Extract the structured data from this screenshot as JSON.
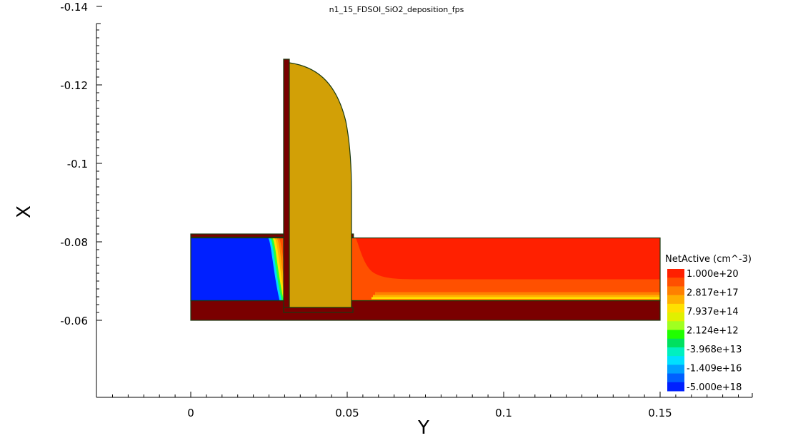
{
  "chart_data": {
    "type": "heatmap",
    "title": "n1_15_FDSOI_SiO2_deposition_fps",
    "xlabel": "Y",
    "ylabel": "X",
    "xlim": [
      -0.03,
      0.18
    ],
    "ylim": [
      -0.06,
      -0.155
    ],
    "x_ticks": [
      {
        "value": 0,
        "label": "0"
      },
      {
        "value": 0.05,
        "label": "0.05"
      },
      {
        "value": 0.1,
        "label": "0.1"
      },
      {
        "value": 0.15,
        "label": "0.15"
      }
    ],
    "y_ticks": [
      {
        "value": -0.14,
        "label": "-0.14"
      },
      {
        "value": -0.12,
        "label": "-0.12"
      },
      {
        "value": -0.1,
        "label": "-0.1"
      },
      {
        "value": -0.08,
        "label": "-0.08"
      },
      {
        "value": -0.06,
        "label": "-0.06"
      }
    ],
    "legend": {
      "title": "NetActive (cm^-3)",
      "placement": "right",
      "labels": [
        "1.000e+20",
        "2.817e+17",
        "7.937e+14",
        "2.124e+12",
        "-3.968e+13",
        "-1.409e+16",
        "-5.000e+18"
      ],
      "colors": [
        "#ff2000",
        "#ff5000",
        "#ff8000",
        "#ffb000",
        "#ffe000",
        "#e0f000",
        "#a0ff20",
        "#20ff00",
        "#00e060",
        "#00f0c0",
        "#00e0ff",
        "#00a0ff",
        "#0060ff",
        "#0020ff"
      ]
    },
    "regions": [
      {
        "name": "buried-oxide",
        "color": "#7a0000",
        "y": [
          0,
          0.15
        ],
        "x": [
          -0.065,
          -0.06
        ]
      },
      {
        "name": "silicon-source",
        "color": "#ff2000",
        "y": [
          0,
          0.15
        ],
        "x": [
          -0.081,
          -0.065
        ]
      },
      {
        "name": "gate-oxide",
        "color": "#7a0000",
        "y": [
          0,
          0.052
        ],
        "x": [
          -0.082,
          -0.0812
        ]
      },
      {
        "name": "liner",
        "color": "#7a0000",
        "y": [
          0.03,
          0.052
        ],
        "x": [
          -0.146,
          -0.081
        ]
      },
      {
        "name": "spacer",
        "color": "#d2a006",
        "y": [
          0.0317,
          0.0512
        ],
        "x": [
          -0.145,
          -0.0825
        ]
      }
    ],
    "colors": {
      "oxide": "#7a0000",
      "spacer": "#d2a006",
      "n_plus": "#ff2000",
      "p_region": "#0020ff",
      "outline": "#1b3a10"
    }
  }
}
